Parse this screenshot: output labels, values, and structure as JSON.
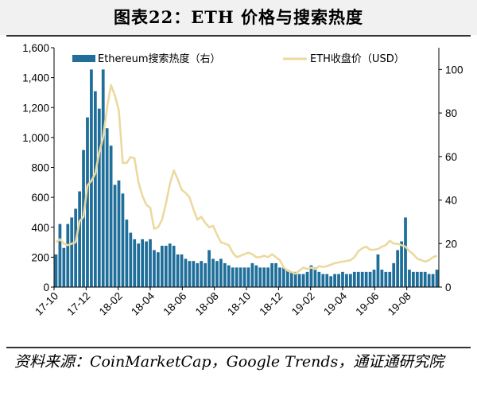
{
  "header": {
    "title": "图表22：ETH 价格与搜索热度"
  },
  "footer": {
    "source": "资料来源：CoinMarketCap，Google Trends，通证通研究院"
  },
  "chart_data": {
    "type": "bar+line",
    "title": "图表22：ETH 价格与搜索热度",
    "left_axis": {
      "min": 0,
      "max": 1600,
      "ticks": [
        0,
        200,
        400,
        600,
        800,
        1000,
        1200,
        1400,
        1600
      ],
      "tick_labels": [
        "0",
        "200",
        "400",
        "600",
        "800",
        "1,000",
        "1,200",
        "1,400",
        "1,600"
      ]
    },
    "right_axis": {
      "min": 0,
      "max": 110,
      "ticks": [
        0,
        20,
        40,
        60,
        80,
        100
      ],
      "tick_labels": [
        "0",
        "20",
        "40",
        "60",
        "80",
        "100"
      ]
    },
    "x_labels": [
      "17-10",
      "17-12",
      "18-02",
      "18-04",
      "18-06",
      "18-08",
      "18-10",
      "18-12",
      "19-02",
      "19-04",
      "19-06",
      "19-08"
    ],
    "legend_position": "top",
    "colors": {
      "bars": "#1f6f9a",
      "line": "#ecd9a0"
    },
    "series": [
      {
        "name": "Ethereum搜索热度（右）",
        "kind": "bar",
        "axis": "right",
        "values": [
          15,
          29,
          18,
          29,
          32,
          36,
          44,
          63,
          78,
          100,
          90,
          82,
          100,
          73,
          65,
          47,
          49,
          43,
          31,
          25,
          22,
          20,
          22,
          21,
          22,
          17,
          16,
          19,
          19,
          20,
          19,
          15,
          15,
          13,
          12,
          12,
          11,
          12,
          11,
          17,
          13,
          12,
          13,
          11,
          10,
          9,
          9,
          9,
          9,
          9,
          11,
          10,
          9,
          9,
          9,
          11,
          11,
          9,
          9,
          8,
          7,
          7,
          6,
          6,
          7,
          10,
          9,
          7,
          6,
          6,
          5,
          6,
          6,
          7,
          6,
          6,
          7,
          7,
          7,
          7,
          7,
          8,
          15,
          8,
          7,
          7,
          11,
          17,
          21,
          32,
          8,
          7,
          7,
          7,
          7,
          6,
          6,
          8
        ]
      },
      {
        "name": "ETH收盘价（USD）",
        "kind": "line",
        "axis": "left",
        "values": [
          300,
          320,
          290,
          280,
          290,
          300,
          440,
          470,
          680,
          710,
          760,
          900,
          1000,
          1200,
          1350,
          1280,
          1180,
          830,
          830,
          870,
          860,
          700,
          610,
          550,
          530,
          390,
          400,
          450,
          560,
          690,
          780,
          720,
          650,
          630,
          600,
          520,
          450,
          470,
          430,
          400,
          410,
          350,
          300,
          290,
          280,
          230,
          200,
          210,
          220,
          230,
          220,
          200,
          200,
          210,
          200,
          220,
          200,
          180,
          130,
          110,
          100,
          90,
          110,
          130,
          120,
          130,
          120,
          140,
          135,
          140,
          150,
          160,
          165,
          170,
          175,
          180,
          200,
          240,
          260,
          270,
          250,
          250,
          255,
          270,
          280,
          310,
          290,
          290,
          280,
          270,
          240,
          220,
          190,
          180,
          170,
          180,
          200,
          210
        ]
      }
    ]
  }
}
